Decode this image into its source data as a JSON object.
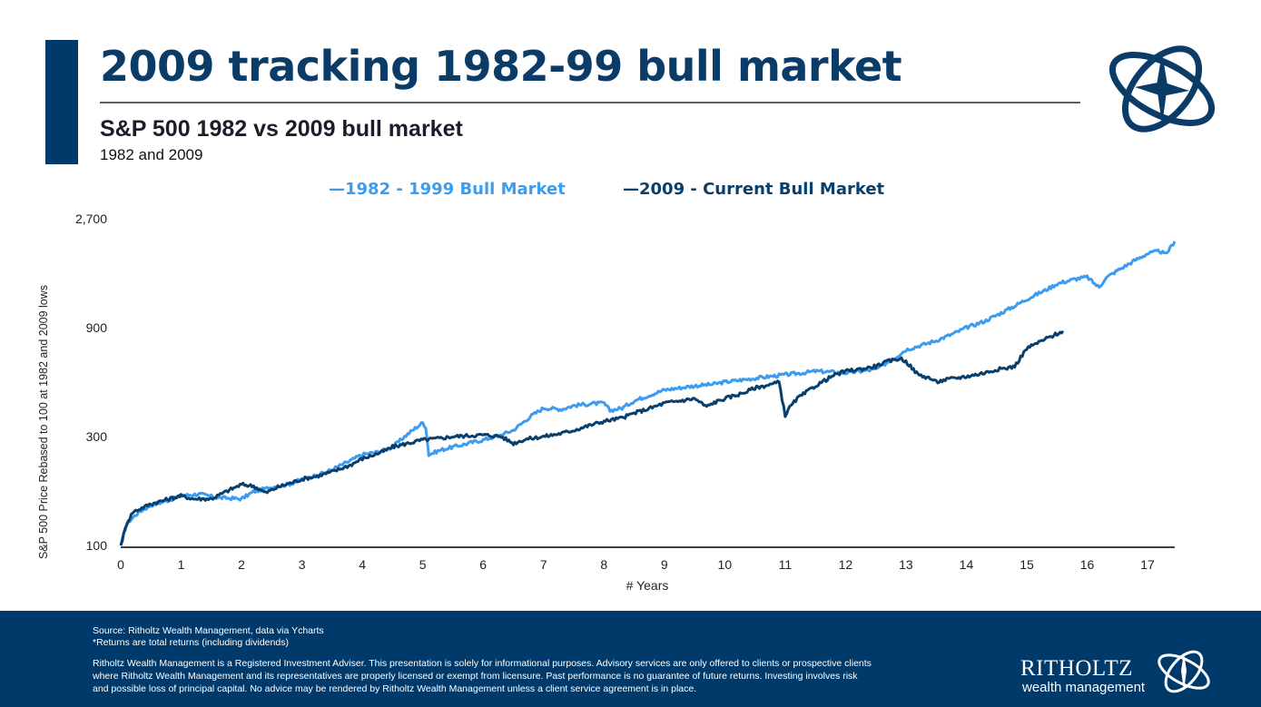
{
  "header": {
    "title": "2009 tracking 1982-99 bull market",
    "subtitle": "S&P 500 1982 vs 2009 bull market",
    "subsubtitle": "1982 and 2009",
    "logo_icon": "compass-rings-logo-icon"
  },
  "colors": {
    "brand_navy": "#003a6b",
    "series_1982": "#3d9bf0",
    "series_2009": "#083f6c"
  },
  "chart_data": {
    "type": "line",
    "title": "S&P 500 1982 vs 2009 bull market",
    "xlabel": "# Years",
    "ylabel": "S&P 500 Price Rebased to 100 at 1982 and 2009 lows",
    "yscale": "log",
    "xlim": [
      0,
      17.45
    ],
    "ylim": [
      100,
      2700
    ],
    "x_ticks": [
      "0",
      "1",
      "2",
      "3",
      "4",
      "5",
      "6",
      "7",
      "8",
      "9",
      "10",
      "11",
      "12",
      "13",
      "14",
      "15",
      "16",
      "17"
    ],
    "y_ticks": [
      {
        "value": 100,
        "label": "100"
      },
      {
        "value": 300,
        "label": "300"
      },
      {
        "value": 900,
        "label": "900"
      },
      {
        "value": 2700,
        "label": "2,700"
      }
    ],
    "grid": false,
    "legend_position": "top-center",
    "series": [
      {
        "name": "1982 - 1999 Bull Market",
        "legend_label": "—1982 - 1999 Bull Market",
        "color": "#3d9bf0",
        "points": [
          [
            0,
            100
          ],
          [
            0.1,
            125
          ],
          [
            0.3,
            140
          ],
          [
            0.5,
            150
          ],
          [
            0.8,
            158
          ],
          [
            1,
            165
          ],
          [
            1.3,
            168
          ],
          [
            1.6,
            162
          ],
          [
            2,
            160
          ],
          [
            2.2,
            172
          ],
          [
            2.5,
            180
          ],
          [
            2.8,
            186
          ],
          [
            3,
            195
          ],
          [
            3.3,
            205
          ],
          [
            3.5,
            215
          ],
          [
            3.8,
            235
          ],
          [
            4,
            250
          ],
          [
            4.3,
            258
          ],
          [
            4.5,
            270
          ],
          [
            4.7,
            300
          ],
          [
            4.9,
            330
          ],
          [
            5.0,
            345
          ],
          [
            5.05,
            330
          ],
          [
            5.1,
            250
          ],
          [
            5.3,
            262
          ],
          [
            5.5,
            270
          ],
          [
            5.8,
            282
          ],
          [
            6,
            290
          ],
          [
            6.3,
            305
          ],
          [
            6.5,
            320
          ],
          [
            6.8,
            370
          ],
          [
            7,
            400
          ],
          [
            7.3,
            395
          ],
          [
            7.5,
            410
          ],
          [
            7.8,
            418
          ],
          [
            8,
            420
          ],
          [
            8.1,
            390
          ],
          [
            8.3,
            400
          ],
          [
            8.5,
            430
          ],
          [
            8.8,
            460
          ],
          [
            9,
            480
          ],
          [
            9.3,
            492
          ],
          [
            9.5,
            500
          ],
          [
            9.8,
            508
          ],
          [
            10,
            520
          ],
          [
            10.5,
            540
          ],
          [
            11,
            560
          ],
          [
            11.3,
            570
          ],
          [
            11.5,
            580
          ],
          [
            11.8,
            575
          ],
          [
            12,
            570
          ],
          [
            12.3,
            582
          ],
          [
            12.5,
            590
          ],
          [
            12.8,
            660
          ],
          [
            13,
            720
          ],
          [
            13.3,
            760
          ],
          [
            13.5,
            790
          ],
          [
            13.8,
            850
          ],
          [
            14,
            900
          ],
          [
            14.3,
            960
          ],
          [
            14.5,
            1020
          ],
          [
            14.8,
            1120
          ],
          [
            15,
            1200
          ],
          [
            15.3,
            1310
          ],
          [
            15.5,
            1400
          ],
          [
            15.8,
            1470
          ],
          [
            16,
            1500
          ],
          [
            16.1,
            1420
          ],
          [
            16.2,
            1350
          ],
          [
            16.3,
            1480
          ],
          [
            16.5,
            1600
          ],
          [
            16.8,
            1780
          ],
          [
            17,
            1900
          ],
          [
            17.2,
            1950
          ],
          [
            17.3,
            1880
          ],
          [
            17.45,
            2150
          ]
        ]
      },
      {
        "name": "2009 - Current Bull Market",
        "legend_label": "—2009 - Current Bull Market",
        "color": "#083f6c",
        "points": [
          [
            0,
            100
          ],
          [
            0.1,
            125
          ],
          [
            0.2,
            140
          ],
          [
            0.5,
            152
          ],
          [
            0.8,
            160
          ],
          [
            1,
            165
          ],
          [
            1.2,
            160
          ],
          [
            1.5,
            160
          ],
          [
            1.8,
            175
          ],
          [
            2,
            185
          ],
          [
            2.2,
            182
          ],
          [
            2.4,
            170
          ],
          [
            2.6,
            180
          ],
          [
            3,
            195
          ],
          [
            3.3,
            203
          ],
          [
            3.5,
            210
          ],
          [
            3.8,
            225
          ],
          [
            4,
            240
          ],
          [
            4.3,
            255
          ],
          [
            4.5,
            270
          ],
          [
            4.8,
            282
          ],
          [
            5,
            290
          ],
          [
            5.3,
            295
          ],
          [
            5.5,
            300
          ],
          [
            5.8,
            303
          ],
          [
            6,
            305
          ],
          [
            6.3,
            300
          ],
          [
            6.5,
            280
          ],
          [
            6.7,
            292
          ],
          [
            7,
            300
          ],
          [
            7.3,
            310
          ],
          [
            7.5,
            320
          ],
          [
            7.8,
            338
          ],
          [
            8,
            350
          ],
          [
            8.3,
            362
          ],
          [
            8.5,
            380
          ],
          [
            8.8,
            402
          ],
          [
            9,
            420
          ],
          [
            9.3,
            432
          ],
          [
            9.5,
            440
          ],
          [
            9.7,
            405
          ],
          [
            9.8,
            420
          ],
          [
            10,
            440
          ],
          [
            10.3,
            465
          ],
          [
            10.5,
            490
          ],
          [
            10.8,
            510
          ],
          [
            10.9,
            520
          ],
          [
            11.0,
            370
          ],
          [
            11.05,
            395
          ],
          [
            11.2,
            440
          ],
          [
            11.5,
            500
          ],
          [
            11.8,
            555
          ],
          [
            12,
            580
          ],
          [
            12.3,
            595
          ],
          [
            12.5,
            610
          ],
          [
            12.7,
            640
          ],
          [
            12.9,
            660
          ],
          [
            13.0,
            640
          ],
          [
            13.2,
            560
          ],
          [
            13.4,
            540
          ],
          [
            13.5,
            520
          ],
          [
            13.7,
            535
          ],
          [
            14,
            550
          ],
          [
            14.3,
            570
          ],
          [
            14.5,
            590
          ],
          [
            14.7,
            600
          ],
          [
            14.8,
            610
          ],
          [
            15,
            730
          ],
          [
            15.3,
            800
          ],
          [
            15.6,
            870
          ]
        ]
      }
    ]
  },
  "footer": {
    "source": "Source: Ritholtz Wealth Management, data via Ycharts",
    "note": "*Returns are total returns (including dividends)",
    "disclaimer": "Ritholtz Wealth Management is a Registered Investment Adviser. This presentation is solely for informational purposes. Advisory services are only offered to clients or prospective clients where Ritholtz Wealth Management and its representatives are properly licensed or exempt from licensure. Past performance is no guarantee of future returns. Investing involves risk and possible loss of principal capital. No advice may be rendered by Ritholtz Wealth Management unless a client service agreement is in place.",
    "logo_word": "RITHOLTZ",
    "logo_sub": "wealth management"
  }
}
